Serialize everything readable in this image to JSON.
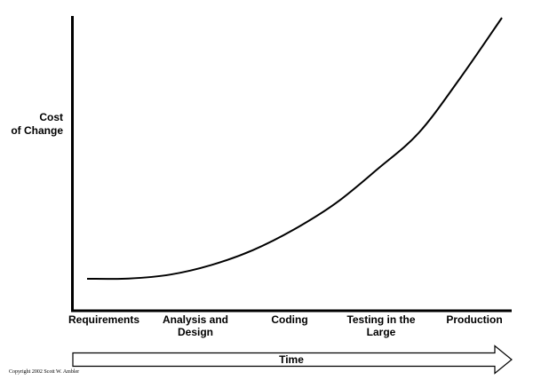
{
  "chart_data": {
    "type": "line",
    "title": "",
    "ylabel_lines": [
      "Cost",
      "of Change"
    ],
    "xlabel": "Time",
    "categories": [
      [
        "Requirements"
      ],
      [
        "Analysis and",
        "Design"
      ],
      [
        "Coding"
      ],
      [
        "Testing in the",
        "Large"
      ],
      [
        "Production"
      ]
    ],
    "x_range": [
      0,
      4
    ],
    "y_range": [
      0,
      100
    ],
    "grid": false,
    "series": [
      {
        "x": [
          0,
          0.4,
          0.8,
          1.2,
          1.6,
          2.0,
          2.4,
          2.8,
          3.2,
          3.6,
          4.0
        ],
        "y": [
          0,
          0.1,
          1.6,
          5.3,
          11,
          19,
          29,
          42,
          56,
          77,
          100
        ]
      }
    ]
  },
  "copyright": "Copyright 2002 Scott W. Ambler",
  "colors": {
    "line": "#000000",
    "background": "#ffffff"
  }
}
